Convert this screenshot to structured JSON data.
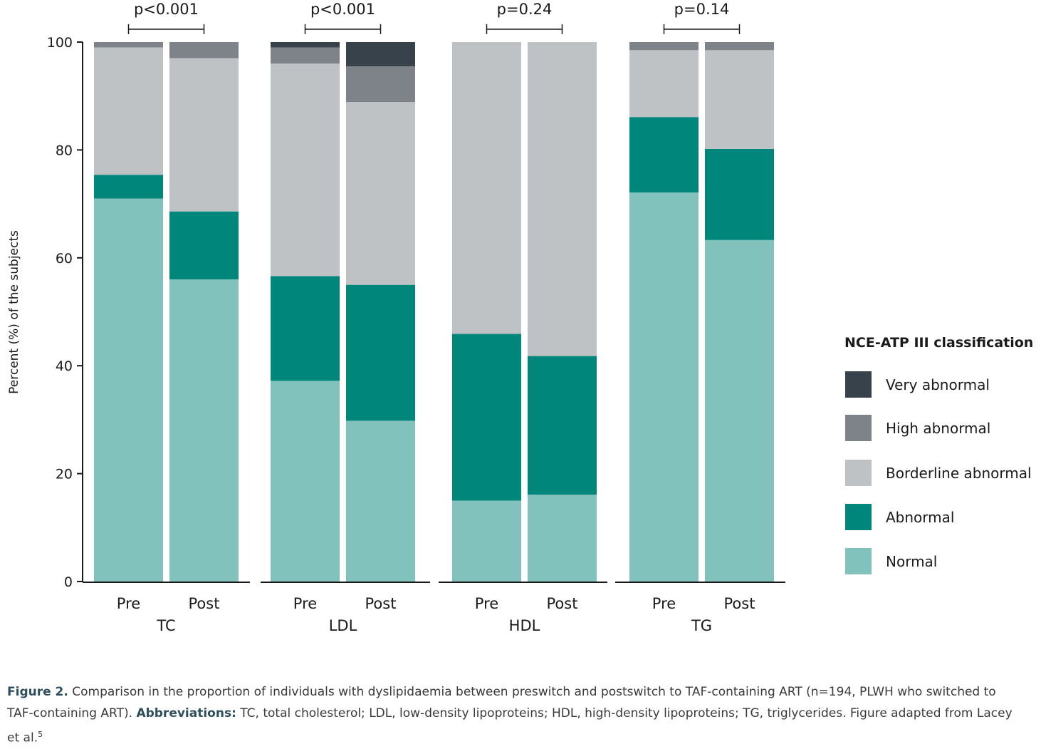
{
  "chart_data": {
    "type": "bar",
    "stacked": true,
    "ylabel": "Percent (%) of the subjects",
    "ylim": [
      0,
      100
    ],
    "yticks": [
      0,
      20,
      40,
      60,
      80,
      100
    ],
    "grid": false,
    "legend": {
      "title": "NCE-ATP III classification",
      "placement": "right",
      "entries": [
        "Very abnormal",
        "High abnormal",
        "Borderline abnormal",
        "Abnormal",
        "Normal"
      ]
    },
    "series": [
      {
        "name": "Normal",
        "color": "#82c2bd"
      },
      {
        "name": "Abnormal",
        "color": "#00867a"
      },
      {
        "name": "Borderline abnormal",
        "color": "#bfc2c4"
      },
      {
        "name": "High abnormal",
        "color": "#7d8388"
      },
      {
        "name": "Very abnormal",
        "color": "#38424a"
      }
    ],
    "groups": [
      {
        "label": "TC",
        "p_value": "p<0.001",
        "bars": [
          {
            "label": "Pre",
            "values": [
              71,
              4.4,
              23.6,
              1,
              0
            ]
          },
          {
            "label": "Post",
            "values": [
              56,
              12.6,
              28.4,
              3,
              0
            ]
          }
        ]
      },
      {
        "label": "LDL",
        "p_value": "p<0.001",
        "bars": [
          {
            "label": "Pre",
            "values": [
              37.2,
              19.4,
              39.4,
              3,
              1
            ]
          },
          {
            "label": "Post",
            "values": [
              29.8,
              25.2,
              33.9,
              6.6,
              4.5
            ]
          }
        ]
      },
      {
        "label": "HDL",
        "p_value": "p=0.24",
        "bars": [
          {
            "label": "Pre",
            "values": [
              15,
              30.9,
              54.1,
              0,
              0
            ]
          },
          {
            "label": "Post",
            "values": [
              16.1,
              25.7,
              58.2,
              0,
              0
            ]
          }
        ]
      },
      {
        "label": "TG",
        "p_value": "p=0.14",
        "bars": [
          {
            "label": "Pre",
            "values": [
              72.1,
              14,
              12.4,
              1.5,
              0
            ]
          },
          {
            "label": "Post",
            "values": [
              63.3,
              16.9,
              18.3,
              1.5,
              0
            ]
          }
        ]
      }
    ]
  },
  "caption": {
    "label": "Figure 2.",
    "text": " Comparison in the proportion of individuals with dyslipidaemia between preswitch and postswitch to TAF-containing ART (n=194, PLWH who switched to TAF-containing ART). ",
    "abbr_label": "Abbreviations:",
    "abbr_text": " TC, total cholesterol; LDL, low-density lipoproteins; HDL, high-density lipoproteins; TG, triglycerides. Figure adapted from Lacey et al.",
    "ref": "5"
  }
}
